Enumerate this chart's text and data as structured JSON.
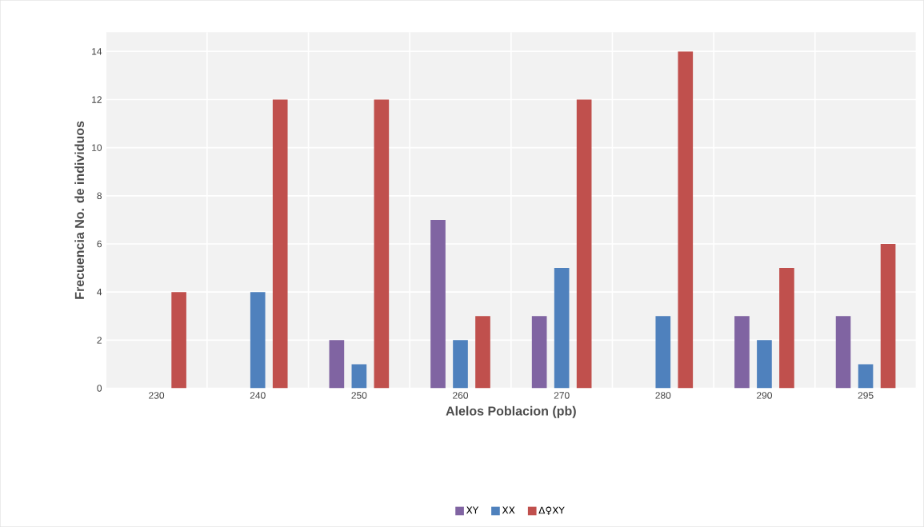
{
  "chart_data": {
    "type": "bar",
    "xlabel": "Alelos Poblacion (pb)",
    "ylabel": "Frecuencia No. de individuos",
    "categories": [
      "230",
      "240",
      "250",
      "260",
      "270",
      "280",
      "290",
      "295"
    ],
    "series": [
      {
        "name": "XY",
        "color": "#8064a2",
        "values": [
          null,
          null,
          2,
          7,
          3,
          null,
          3,
          3
        ]
      },
      {
        "name": "XX",
        "color": "#4f81bd",
        "values": [
          null,
          4,
          1,
          2,
          5,
          3,
          2,
          1
        ]
      },
      {
        "name": "Δ♀XY",
        "color": "#c0504d",
        "values": [
          4,
          12,
          12,
          3,
          12,
          14,
          5,
          6
        ]
      }
    ],
    "ylim": [
      0,
      14.8
    ],
    "yticks": [
      0,
      2,
      4,
      6,
      8,
      10,
      12,
      14
    ],
    "grid": true,
    "legend": "bottom"
  }
}
